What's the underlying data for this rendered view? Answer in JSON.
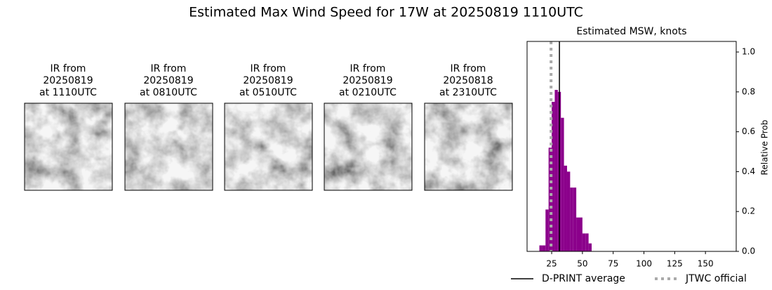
{
  "chart_data": {
    "type": "histogram",
    "title": "Estimated Max Wind Speed for 17W at 20250819 1110UTC",
    "panels": [
      {
        "lines": [
          "IR from",
          "20250819",
          "at 1110UTC"
        ]
      },
      {
        "lines": [
          "IR from",
          "20250819",
          "at 0810UTC"
        ]
      },
      {
        "lines": [
          "IR from",
          "20250819",
          "at 0510UTC"
        ]
      },
      {
        "lines": [
          "IR from",
          "20250819",
          "at 0210UTC"
        ]
      },
      {
        "lines": [
          "IR from",
          "20250818",
          "at 2310UTC"
        ]
      }
    ],
    "subtitle": "Estimated MSW, knots",
    "ylabel": "Relative Prob",
    "color": "#8b008b",
    "bins": [
      15,
      17.5,
      20,
      22.5,
      25,
      27.5,
      30,
      32.5,
      35,
      37.5,
      40,
      42.5,
      45,
      47.5,
      50,
      52.5,
      55,
      57.5
    ],
    "values": [
      0.03,
      0.03,
      0.21,
      0.52,
      0.75,
      0.81,
      0.8,
      0.67,
      0.43,
      0.4,
      0.32,
      0.32,
      0.17,
      0.17,
      0.09,
      0.09,
      0.04
    ],
    "xlim": [
      5,
      175
    ],
    "xticks": [
      25,
      50,
      75,
      100,
      125,
      150
    ],
    "ylim": [
      0,
      1.053
    ],
    "yticks": [
      {
        "value": 0,
        "label": "0.0"
      },
      0.2,
      0.4,
      0.6,
      0.8,
      {
        "value": 1,
        "label": "1.0"
      }
    ],
    "lines": [
      {
        "name": "D-PRINT average",
        "x": 31.3,
        "color": "#000000",
        "style": "solid"
      },
      {
        "name": "JTWC official",
        "x": 24.5,
        "color": "#aaaaaa",
        "style": "dotted"
      }
    ]
  }
}
